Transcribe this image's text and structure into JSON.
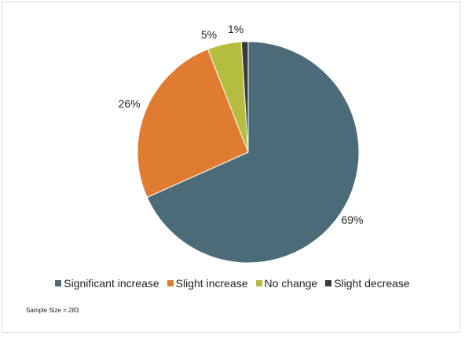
{
  "chart_data": {
    "type": "pie",
    "title": "",
    "slices": [
      {
        "label": "Significant increase",
        "value": 69,
        "display": "69%",
        "color": "#4a6b77"
      },
      {
        "label": "Slight increase",
        "value": 26,
        "display": "26%",
        "color": "#e07b32"
      },
      {
        "label": "No change",
        "value": 5,
        "display": "5%",
        "color": "#b5bd3f"
      },
      {
        "label": "Slight decrease",
        "value": 1,
        "display": "1%",
        "color": "#3b3b3b"
      }
    ],
    "legend_position": "bottom",
    "start_angle_deg": 0,
    "direction": "clockwise"
  },
  "footnote": "Sample Size = 283"
}
